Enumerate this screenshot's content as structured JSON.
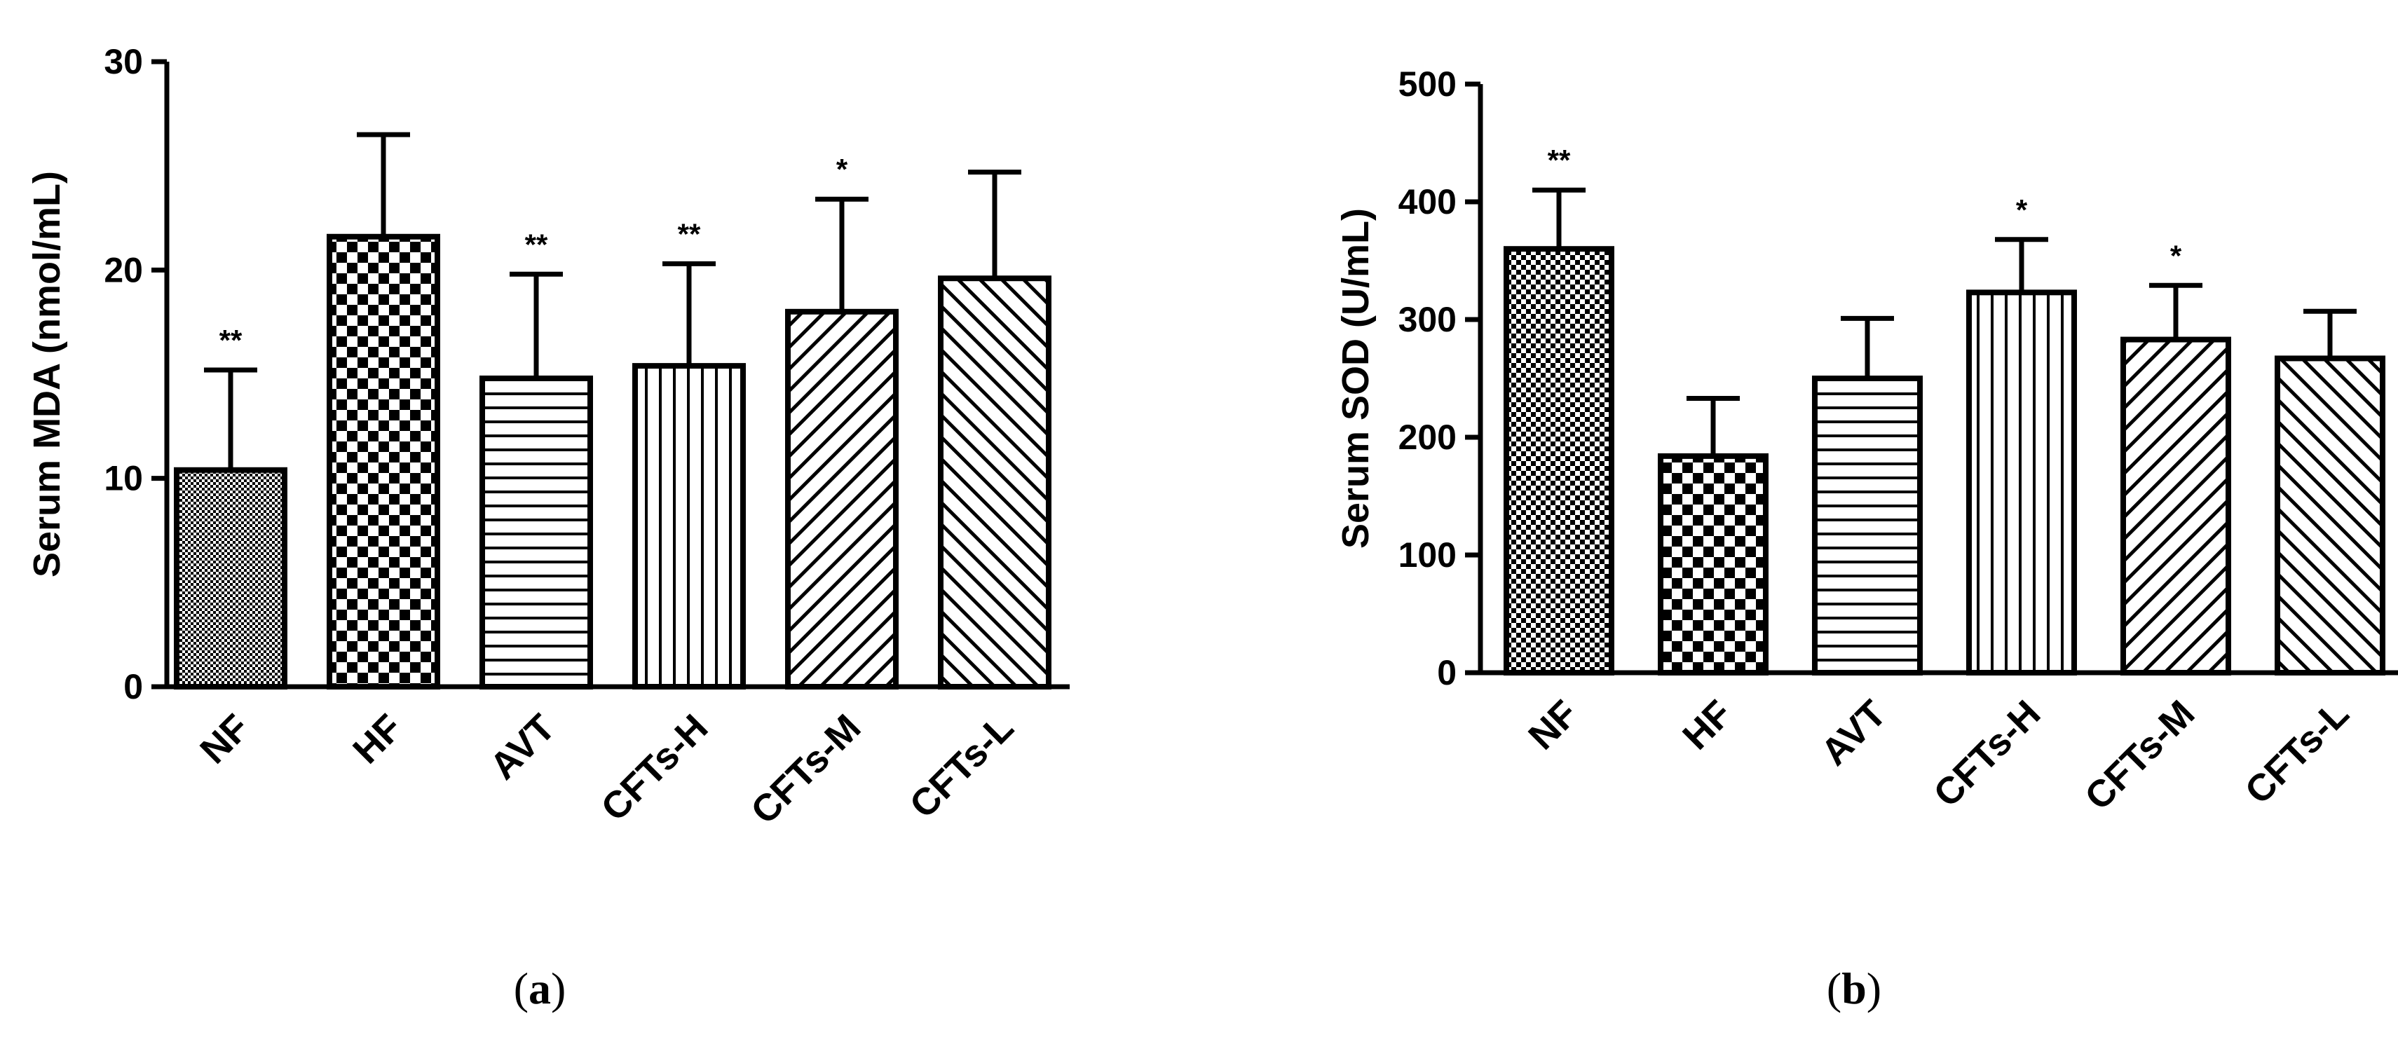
{
  "chart_data": [
    {
      "type": "bar",
      "panel_label": "(a)",
      "panel_letter": "a",
      "ylabel": "Serum MDA (nmol/mL)",
      "categories": [
        "NF",
        "HF",
        "AVT",
        "CFTs-H",
        "CFTs-M",
        "CFTs-L"
      ],
      "values": [
        10.4,
        21.6,
        14.8,
        15.4,
        18.0,
        19.6
      ],
      "error_upper": [
        4.8,
        4.9,
        5.0,
        4.9,
        5.4,
        5.1
      ],
      "significance": [
        "**",
        "",
        "**",
        "**",
        "*",
        ""
      ],
      "patterns": [
        "fine-dots",
        "checker",
        "horizontal",
        "vertical",
        "diag-up",
        "diag-down"
      ],
      "ylim": [
        0,
        30
      ],
      "yticks": [
        0,
        10,
        20,
        30
      ]
    },
    {
      "type": "bar",
      "panel_label": "(b)",
      "panel_letter": "b",
      "ylabel": "Serum SOD (U/mL)",
      "categories": [
        "NF",
        "HF",
        "AVT",
        "CFTs-H",
        "CFTs-M",
        "CFTs-L"
      ],
      "values": [
        360,
        184,
        250,
        323,
        283,
        267
      ],
      "error_upper": [
        50,
        49,
        51,
        45,
        46,
        40
      ],
      "significance": [
        "**",
        "",
        "",
        "*",
        "*",
        ""
      ],
      "patterns": [
        "coarse-dots",
        "checker",
        "horizontal",
        "vertical",
        "diag-up",
        "diag-down"
      ],
      "ylim": [
        0,
        500
      ],
      "yticks": [
        0,
        100,
        200,
        300,
        400,
        500
      ]
    }
  ]
}
